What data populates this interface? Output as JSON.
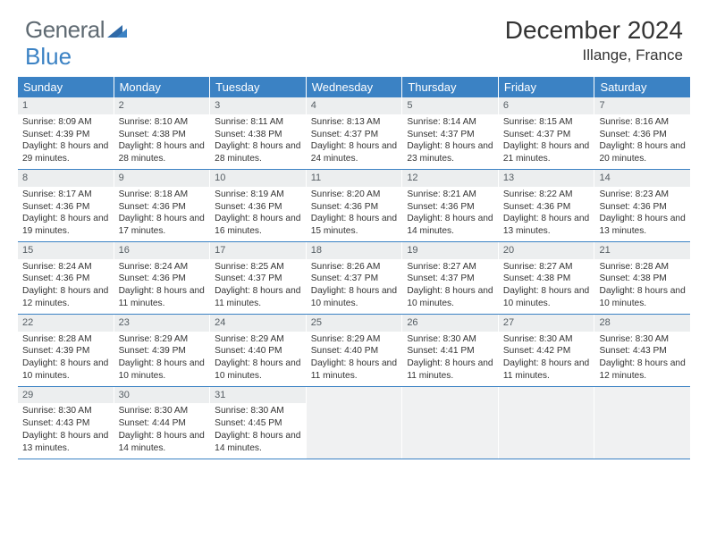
{
  "brand": {
    "general": "General",
    "blue": "Blue"
  },
  "title": "December 2024",
  "location": "Illange, France",
  "colors": {
    "header_bar": "#3b82c4",
    "daynum_bg": "#eceeef",
    "empty_bg": "#f0f1f2",
    "text": "#333333",
    "logo_gray": "#5f6a72",
    "logo_blue": "#3b82c4",
    "border": "#3b82c4"
  },
  "weekdays": [
    "Sunday",
    "Monday",
    "Tuesday",
    "Wednesday",
    "Thursday",
    "Friday",
    "Saturday"
  ],
  "weeks": [
    [
      {
        "n": "1",
        "sr": "Sunrise: 8:09 AM",
        "ss": "Sunset: 4:39 PM",
        "dl": "Daylight: 8 hours and 29 minutes."
      },
      {
        "n": "2",
        "sr": "Sunrise: 8:10 AM",
        "ss": "Sunset: 4:38 PM",
        "dl": "Daylight: 8 hours and 28 minutes."
      },
      {
        "n": "3",
        "sr": "Sunrise: 8:11 AM",
        "ss": "Sunset: 4:38 PM",
        "dl": "Daylight: 8 hours and 28 minutes."
      },
      {
        "n": "4",
        "sr": "Sunrise: 8:13 AM",
        "ss": "Sunset: 4:37 PM",
        "dl": "Daylight: 8 hours and 24 minutes."
      },
      {
        "n": "5",
        "sr": "Sunrise: 8:14 AM",
        "ss": "Sunset: 4:37 PM",
        "dl": "Daylight: 8 hours and 23 minutes."
      },
      {
        "n": "6",
        "sr": "Sunrise: 8:15 AM",
        "ss": "Sunset: 4:37 PM",
        "dl": "Daylight: 8 hours and 21 minutes."
      },
      {
        "n": "7",
        "sr": "Sunrise: 8:16 AM",
        "ss": "Sunset: 4:36 PM",
        "dl": "Daylight: 8 hours and 20 minutes."
      }
    ],
    [
      {
        "n": "8",
        "sr": "Sunrise: 8:17 AM",
        "ss": "Sunset: 4:36 PM",
        "dl": "Daylight: 8 hours and 19 minutes."
      },
      {
        "n": "9",
        "sr": "Sunrise: 8:18 AM",
        "ss": "Sunset: 4:36 PM",
        "dl": "Daylight: 8 hours and 17 minutes."
      },
      {
        "n": "10",
        "sr": "Sunrise: 8:19 AM",
        "ss": "Sunset: 4:36 PM",
        "dl": "Daylight: 8 hours and 16 minutes."
      },
      {
        "n": "11",
        "sr": "Sunrise: 8:20 AM",
        "ss": "Sunset: 4:36 PM",
        "dl": "Daylight: 8 hours and 15 minutes."
      },
      {
        "n": "12",
        "sr": "Sunrise: 8:21 AM",
        "ss": "Sunset: 4:36 PM",
        "dl": "Daylight: 8 hours and 14 minutes."
      },
      {
        "n": "13",
        "sr": "Sunrise: 8:22 AM",
        "ss": "Sunset: 4:36 PM",
        "dl": "Daylight: 8 hours and 13 minutes."
      },
      {
        "n": "14",
        "sr": "Sunrise: 8:23 AM",
        "ss": "Sunset: 4:36 PM",
        "dl": "Daylight: 8 hours and 13 minutes."
      }
    ],
    [
      {
        "n": "15",
        "sr": "Sunrise: 8:24 AM",
        "ss": "Sunset: 4:36 PM",
        "dl": "Daylight: 8 hours and 12 minutes."
      },
      {
        "n": "16",
        "sr": "Sunrise: 8:24 AM",
        "ss": "Sunset: 4:36 PM",
        "dl": "Daylight: 8 hours and 11 minutes."
      },
      {
        "n": "17",
        "sr": "Sunrise: 8:25 AM",
        "ss": "Sunset: 4:37 PM",
        "dl": "Daylight: 8 hours and 11 minutes."
      },
      {
        "n": "18",
        "sr": "Sunrise: 8:26 AM",
        "ss": "Sunset: 4:37 PM",
        "dl": "Daylight: 8 hours and 10 minutes."
      },
      {
        "n": "19",
        "sr": "Sunrise: 8:27 AM",
        "ss": "Sunset: 4:37 PM",
        "dl": "Daylight: 8 hours and 10 minutes."
      },
      {
        "n": "20",
        "sr": "Sunrise: 8:27 AM",
        "ss": "Sunset: 4:38 PM",
        "dl": "Daylight: 8 hours and 10 minutes."
      },
      {
        "n": "21",
        "sr": "Sunrise: 8:28 AM",
        "ss": "Sunset: 4:38 PM",
        "dl": "Daylight: 8 hours and 10 minutes."
      }
    ],
    [
      {
        "n": "22",
        "sr": "Sunrise: 8:28 AM",
        "ss": "Sunset: 4:39 PM",
        "dl": "Daylight: 8 hours and 10 minutes."
      },
      {
        "n": "23",
        "sr": "Sunrise: 8:29 AM",
        "ss": "Sunset: 4:39 PM",
        "dl": "Daylight: 8 hours and 10 minutes."
      },
      {
        "n": "24",
        "sr": "Sunrise: 8:29 AM",
        "ss": "Sunset: 4:40 PM",
        "dl": "Daylight: 8 hours and 10 minutes."
      },
      {
        "n": "25",
        "sr": "Sunrise: 8:29 AM",
        "ss": "Sunset: 4:40 PM",
        "dl": "Daylight: 8 hours and 11 minutes."
      },
      {
        "n": "26",
        "sr": "Sunrise: 8:30 AM",
        "ss": "Sunset: 4:41 PM",
        "dl": "Daylight: 8 hours and 11 minutes."
      },
      {
        "n": "27",
        "sr": "Sunrise: 8:30 AM",
        "ss": "Sunset: 4:42 PM",
        "dl": "Daylight: 8 hours and 11 minutes."
      },
      {
        "n": "28",
        "sr": "Sunrise: 8:30 AM",
        "ss": "Sunset: 4:43 PM",
        "dl": "Daylight: 8 hours and 12 minutes."
      }
    ],
    [
      {
        "n": "29",
        "sr": "Sunrise: 8:30 AM",
        "ss": "Sunset: 4:43 PM",
        "dl": "Daylight: 8 hours and 13 minutes."
      },
      {
        "n": "30",
        "sr": "Sunrise: 8:30 AM",
        "ss": "Sunset: 4:44 PM",
        "dl": "Daylight: 8 hours and 14 minutes."
      },
      {
        "n": "31",
        "sr": "Sunrise: 8:30 AM",
        "ss": "Sunset: 4:45 PM",
        "dl": "Daylight: 8 hours and 14 minutes."
      },
      null,
      null,
      null,
      null
    ]
  ]
}
